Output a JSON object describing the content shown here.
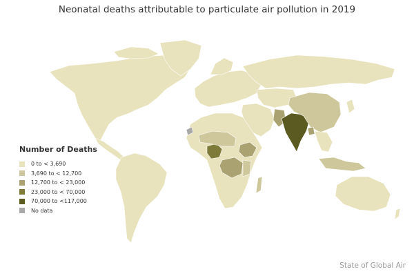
{
  "header": {
    "title": "Neonatal deaths attributable to particulate air pollution in 2019"
  },
  "legend": {
    "title": "Number of Deaths",
    "items": [
      {
        "label": "0 to < 3,690",
        "color": "#e8e2bd"
      },
      {
        "label": "3,690 to < 12,700",
        "color": "#cfc79c"
      },
      {
        "label": "12,700 to < 23,000",
        "color": "#aaa371"
      },
      {
        "label": "23,000 to < 70,000",
        "color": "#7d7a3a"
      },
      {
        "label": "70,000 to <117,000",
        "color": "#5b5b21"
      },
      {
        "label": "No data",
        "color": "#a9a9a9"
      }
    ]
  },
  "footer": {
    "credit": "State of Global Air"
  },
  "colors": {
    "ocean": "#ffffff",
    "border": "#ffffff"
  }
}
